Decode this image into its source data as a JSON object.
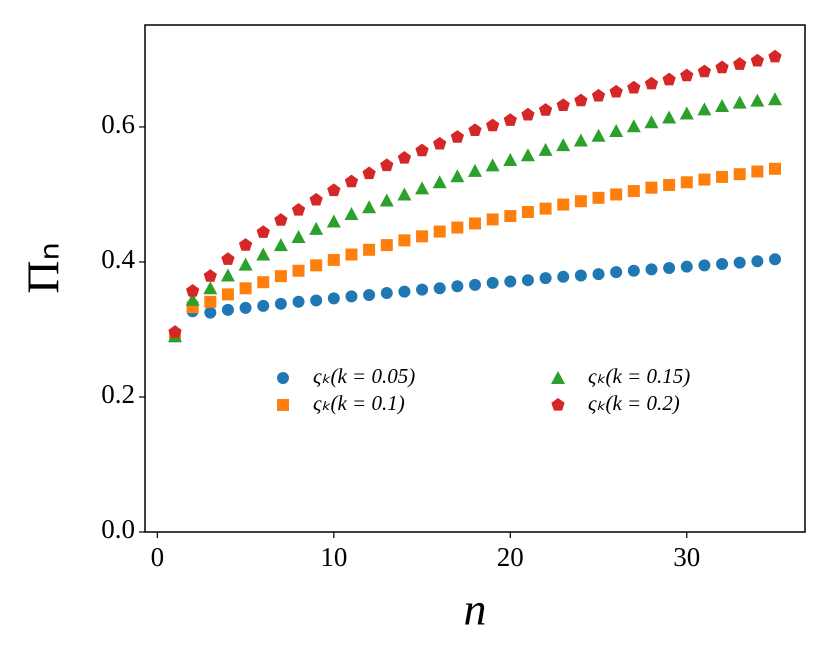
{
  "chart_data": {
    "type": "scatter",
    "x": [
      1,
      2,
      3,
      4,
      5,
      6,
      7,
      8,
      9,
      10,
      11,
      12,
      13,
      14,
      15,
      16,
      17,
      18,
      19,
      20,
      21,
      22,
      23,
      24,
      25,
      26,
      27,
      28,
      29,
      30,
      31,
      32,
      33,
      34,
      35
    ],
    "xlabel": "n",
    "ylabel": "Πₙ",
    "xlim": [
      -0.7,
      36.7
    ],
    "ylim": [
      0,
      0.751
    ],
    "xticks": [
      0,
      10,
      20,
      30
    ],
    "yticks": [
      {
        "value": 0,
        "label": "0.0"
      },
      {
        "value": 0.2,
        "label": "0.2"
      },
      {
        "value": 0.4,
        "label": "0.4"
      },
      {
        "value": 0.6,
        "label": "0.6"
      }
    ],
    "legend": "center",
    "series": [
      {
        "name": "ςₖ(k = 0.05)",
        "color": "#1f77b4",
        "marker": "circle",
        "values": [
          0.29,
          0.327,
          0.325,
          0.329,
          0.332,
          0.335,
          0.338,
          0.341,
          0.343,
          0.346,
          0.349,
          0.351,
          0.354,
          0.356,
          0.359,
          0.361,
          0.364,
          0.366,
          0.369,
          0.371,
          0.373,
          0.376,
          0.378,
          0.38,
          0.382,
          0.385,
          0.387,
          0.389,
          0.391,
          0.393,
          0.395,
          0.397,
          0.399,
          0.401,
          0.404
        ]
      },
      {
        "name": "ςₖ(k = 0.1)",
        "color": "#ff7f0e",
        "marker": "square",
        "values": [
          0.29,
          0.333,
          0.341,
          0.352,
          0.361,
          0.37,
          0.379,
          0.387,
          0.395,
          0.403,
          0.411,
          0.418,
          0.425,
          0.432,
          0.438,
          0.445,
          0.451,
          0.457,
          0.463,
          0.468,
          0.474,
          0.479,
          0.485,
          0.49,
          0.495,
          0.5,
          0.505,
          0.51,
          0.514,
          0.518,
          0.522,
          0.526,
          0.53,
          0.534,
          0.538
        ]
      },
      {
        "name": "ςₖ(k = 0.15)",
        "color": "#2ca02c",
        "marker": "triangle",
        "values": [
          0.29,
          0.344,
          0.361,
          0.38,
          0.396,
          0.411,
          0.425,
          0.437,
          0.449,
          0.46,
          0.471,
          0.481,
          0.491,
          0.5,
          0.509,
          0.518,
          0.527,
          0.535,
          0.543,
          0.551,
          0.558,
          0.566,
          0.573,
          0.58,
          0.587,
          0.594,
          0.601,
          0.607,
          0.614,
          0.62,
          0.626,
          0.631,
          0.636,
          0.639,
          0.641
        ]
      },
      {
        "name": "ςₖ(k = 0.2)",
        "color": "#d62728",
        "marker": "pentagon",
        "values": [
          0.296,
          0.357,
          0.379,
          0.404,
          0.425,
          0.444,
          0.462,
          0.477,
          0.492,
          0.506,
          0.519,
          0.531,
          0.543,
          0.554,
          0.565,
          0.575,
          0.585,
          0.595,
          0.602,
          0.61,
          0.618,
          0.625,
          0.632,
          0.639,
          0.646,
          0.652,
          0.658,
          0.664,
          0.67,
          0.676,
          0.682,
          0.688,
          0.693,
          0.698,
          0.704
        ]
      }
    ]
  }
}
